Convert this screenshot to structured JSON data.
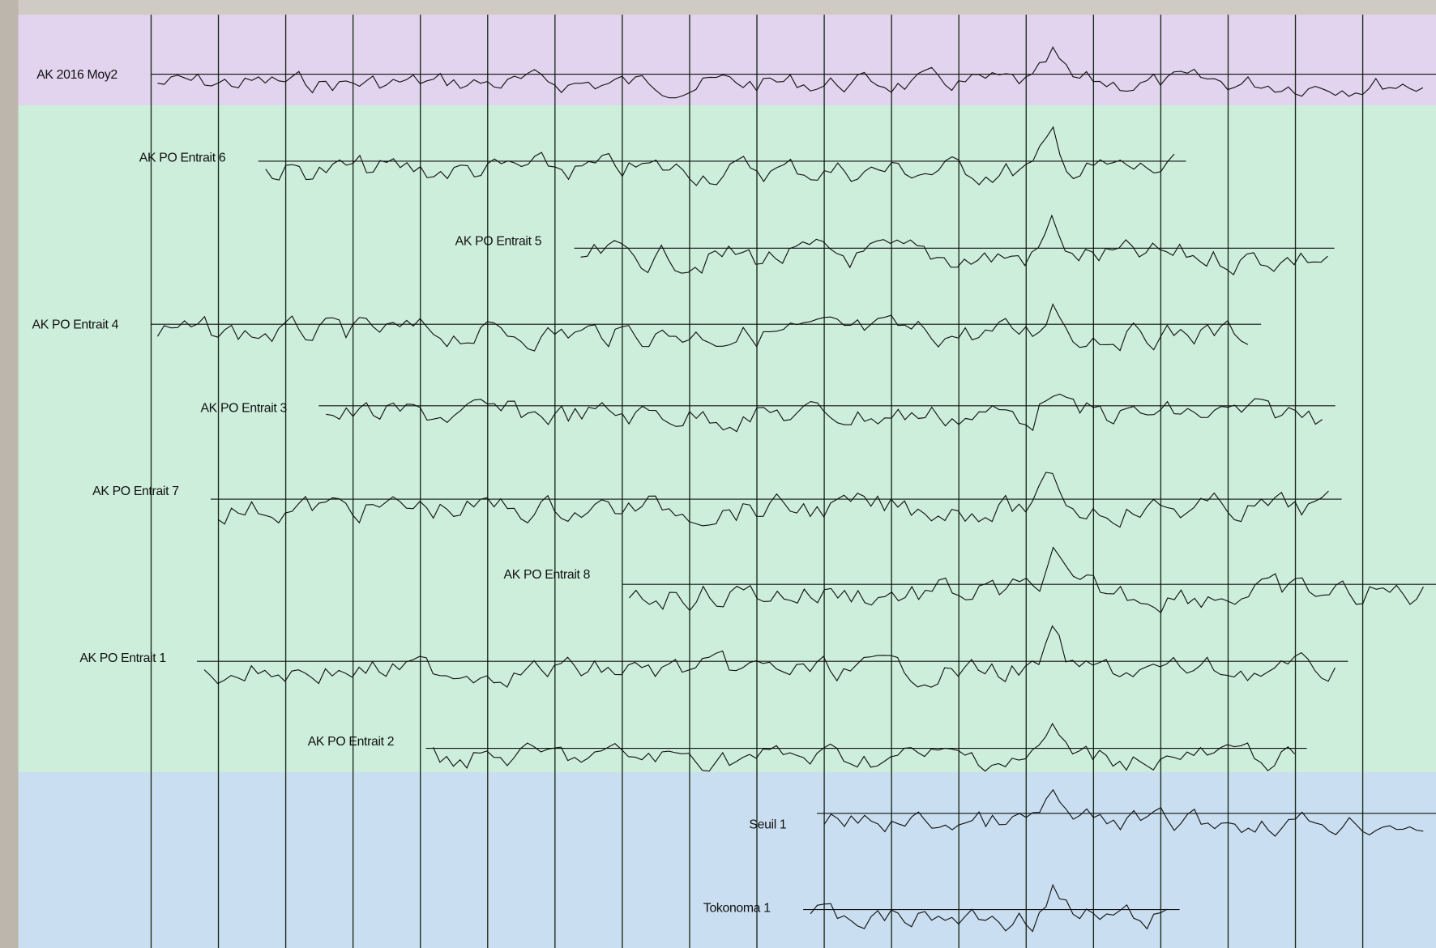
{
  "series_labels": [
    "AK 2016 Moy2",
    "AK PO Entrait 6",
    "AK PO Entrait 5",
    "AK PO Entrait 4",
    "AK PO Entrait 3",
    "AK PO Entrait 7",
    "AK PO Entrait 8",
    "AK PO Entrait 1",
    "AK PO Entrait 2",
    "Seuil 1",
    "Tokonoma 1"
  ]
}
